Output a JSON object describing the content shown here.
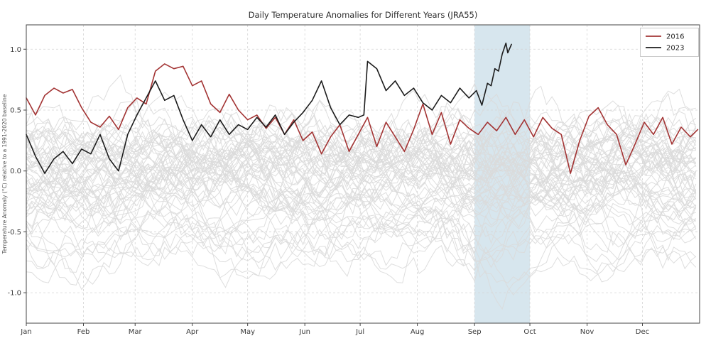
{
  "page": {
    "background_color": "#ffffff"
  },
  "chart_data": {
    "type": "line",
    "title": "Daily Temperature Anomalies for Different Years (JRA55)",
    "xlabel": "",
    "ylabel": "Temperature Anomaly (°C) relative to a 1991-2020 baseline",
    "x_unit": "day_of_year",
    "xlim": [
      0,
      365
    ],
    "ylim": [
      -1.25,
      1.2
    ],
    "grid": true,
    "y_ticks": [
      1.0,
      0.5,
      0.0,
      -0.5,
      -1.0
    ],
    "y_tick_labels": [
      "1.0",
      "0.5",
      "0.0",
      "-0.5",
      "-1.0"
    ],
    "x_ticks": [
      {
        "label": "Jan",
        "day": 0
      },
      {
        "label": "Feb",
        "day": 31
      },
      {
        "label": "Mar",
        "day": 59
      },
      {
        "label": "Apr",
        "day": 90
      },
      {
        "label": "May",
        "day": 120
      },
      {
        "label": "Jun",
        "day": 151
      },
      {
        "label": "Jul",
        "day": 181
      },
      {
        "label": "Aug",
        "day": 212
      },
      {
        "label": "Sep",
        "day": 243
      },
      {
        "label": "Oct",
        "day": 273
      },
      {
        "label": "Nov",
        "day": 304
      },
      {
        "label": "Dec",
        "day": 334
      }
    ],
    "highlight_band": {
      "start_day": 243,
      "end_day": 273,
      "color": "#d7e6ee",
      "note": "September highlighted"
    },
    "legend": {
      "position": "top-right",
      "entries": [
        "2016",
        "2023"
      ]
    },
    "series": [
      {
        "name": "2016",
        "color": "#a33434",
        "x": [
          0,
          5,
          10,
          15,
          20,
          25,
          30,
          35,
          40,
          45,
          50,
          55,
          60,
          65,
          70,
          75,
          80,
          85,
          90,
          95,
          100,
          105,
          110,
          115,
          120,
          125,
          130,
          135,
          140,
          145,
          150,
          155,
          160,
          165,
          170,
          175,
          180,
          185,
          190,
          195,
          200,
          205,
          210,
          215,
          220,
          225,
          230,
          235,
          240,
          245,
          250,
          255,
          260,
          265,
          270,
          275,
          280,
          285,
          290,
          295,
          300,
          305,
          310,
          315,
          320,
          325,
          330,
          335,
          340,
          345,
          350,
          355,
          360,
          364
        ],
        "values": [
          0.6,
          0.46,
          0.62,
          0.68,
          0.64,
          0.67,
          0.52,
          0.4,
          0.36,
          0.45,
          0.34,
          0.52,
          0.6,
          0.55,
          0.82,
          0.88,
          0.84,
          0.86,
          0.7,
          0.74,
          0.55,
          0.48,
          0.63,
          0.5,
          0.42,
          0.46,
          0.35,
          0.44,
          0.3,
          0.42,
          0.25,
          0.32,
          0.14,
          0.28,
          0.38,
          0.16,
          0.3,
          0.44,
          0.2,
          0.4,
          0.28,
          0.16,
          0.34,
          0.55,
          0.3,
          0.48,
          0.22,
          0.42,
          0.35,
          0.3,
          0.4,
          0.33,
          0.44,
          0.3,
          0.42,
          0.28,
          0.44,
          0.35,
          0.3,
          -0.02,
          0.25,
          0.45,
          0.52,
          0.38,
          0.3,
          0.05,
          0.22,
          0.4,
          0.3,
          0.44,
          0.22,
          0.36,
          0.28,
          0.34
        ]
      },
      {
        "name": "2023",
        "color": "#1c1c1c",
        "x": [
          0,
          5,
          10,
          15,
          20,
          25,
          30,
          35,
          40,
          45,
          50,
          55,
          60,
          65,
          70,
          75,
          80,
          85,
          90,
          95,
          100,
          105,
          110,
          115,
          120,
          125,
          130,
          135,
          140,
          145,
          150,
          155,
          160,
          165,
          170,
          175,
          180,
          183,
          185,
          190,
          195,
          200,
          205,
          210,
          215,
          220,
          225,
          230,
          235,
          240,
          244,
          247,
          250,
          252,
          254,
          256,
          258,
          260,
          261,
          263
        ],
        "values": [
          0.3,
          0.12,
          -0.02,
          0.1,
          0.16,
          0.06,
          0.18,
          0.14,
          0.3,
          0.1,
          0.0,
          0.3,
          0.46,
          0.6,
          0.74,
          0.58,
          0.62,
          0.42,
          0.25,
          0.38,
          0.28,
          0.42,
          0.3,
          0.38,
          0.34,
          0.44,
          0.36,
          0.46,
          0.3,
          0.4,
          0.48,
          0.58,
          0.74,
          0.52,
          0.38,
          0.46,
          0.44,
          0.46,
          0.9,
          0.84,
          0.66,
          0.74,
          0.62,
          0.68,
          0.56,
          0.5,
          0.62,
          0.56,
          0.68,
          0.6,
          0.66,
          0.54,
          0.72,
          0.7,
          0.84,
          0.82,
          0.96,
          1.05,
          0.97,
          1.04
        ]
      }
    ],
    "background_series": {
      "note": "ensemble of other years shown in light gray",
      "count": 62,
      "color": "#dadada",
      "seed": 11,
      "value_range": [
        -1.17,
        0.82
      ]
    },
    "style": {
      "grid_color": "#d4d4d4",
      "axis_color": "#444444",
      "background": "#ffffff",
      "legend_border": "#c9c9c9"
    }
  }
}
